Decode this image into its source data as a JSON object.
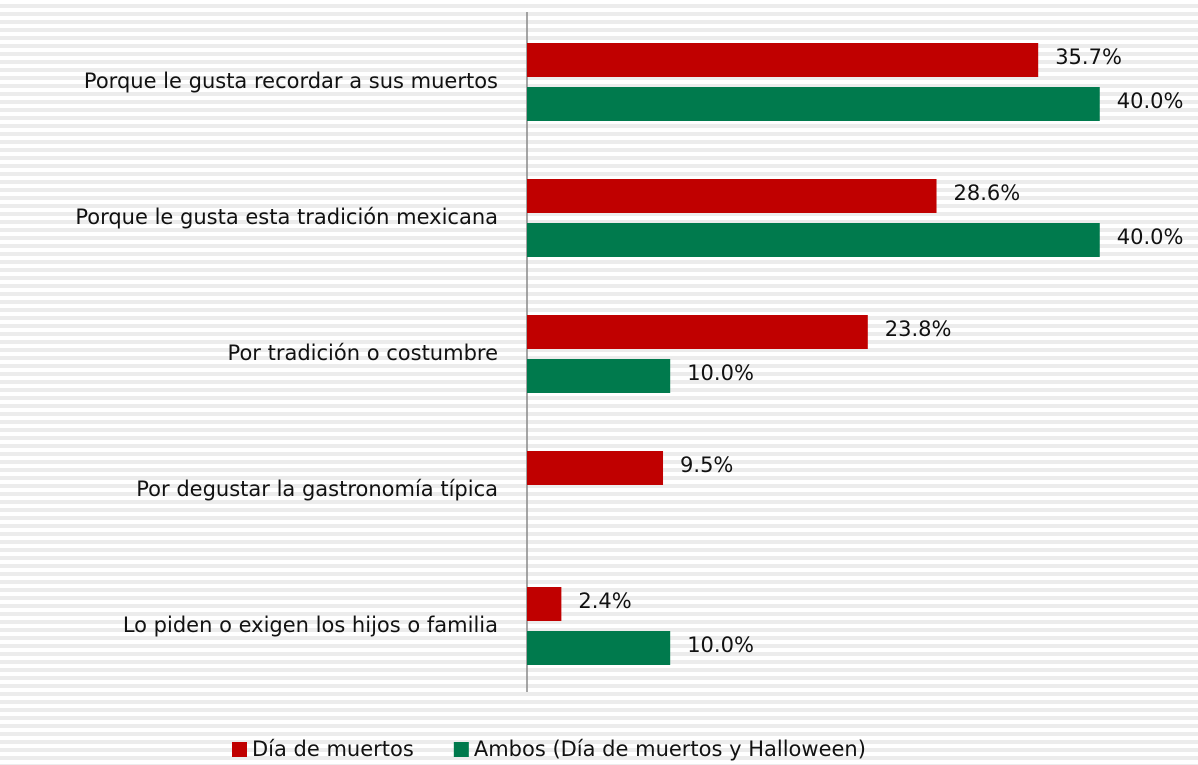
{
  "chart_data": {
    "type": "bar",
    "orientation": "horizontal",
    "categories": [
      "Porque le gusta recordar a sus muertos",
      "Porque le gusta esta tradición mexicana",
      "Por tradición o costumbre",
      "Por degustar la gastronomía típica",
      "Lo piden o exigen los hijos o familia"
    ],
    "series": [
      {
        "name": "Día de muertos",
        "color": "#c00000",
        "values": [
          35.7,
          28.6,
          23.8,
          9.5,
          2.4
        ],
        "value_labels": [
          "35.7%",
          "28.6%",
          "23.8%",
          "9.5%",
          "2.4%"
        ]
      },
      {
        "name": "Ambos (Día de muertos y Halloween)",
        "color": "#007a4d",
        "values": [
          40.0,
          40.0,
          10.0,
          null,
          10.0
        ],
        "value_labels": [
          "40.0%",
          "40.0%",
          "10.0%",
          null,
          "10.0%"
        ]
      }
    ],
    "xlim": [
      0,
      47
    ],
    "legend": "bottom"
  }
}
